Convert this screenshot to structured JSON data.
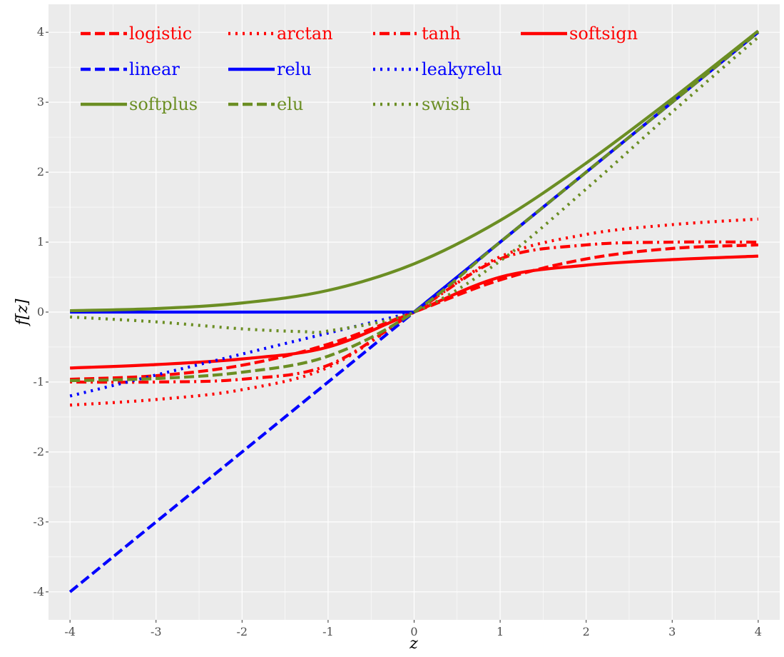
{
  "chart_data": {
    "type": "line",
    "xlabel": "z",
    "ylabel": "f[z]",
    "xlim": [
      -4.25,
      4.25
    ],
    "ylim": [
      -4.4,
      4.4
    ],
    "x_ticks": [
      "-4",
      "-3",
      "-2",
      "-1",
      "0",
      "1",
      "2",
      "3",
      "4"
    ],
    "y_ticks": [
      "-4",
      "-3",
      "-2",
      "-1",
      "0",
      "1",
      "2",
      "3",
      "4"
    ],
    "grid": true,
    "legend_position": "top-left",
    "colors": {
      "red": "#ff0000",
      "blue": "#0000ff",
      "green": "#6b8e23",
      "panel": "#ebebeb",
      "grid": "#ffffff"
    },
    "series": [
      {
        "name": "logistic",
        "color": "#ff0000",
        "dash": "dashed",
        "x": [
          -4,
          -3,
          -2,
          -1,
          0,
          1,
          2,
          3,
          4
        ],
        "y": [
          -0.96,
          -0.91,
          -0.76,
          -0.46,
          0,
          0.46,
          0.76,
          0.91,
          0.96
        ]
      },
      {
        "name": "arctan",
        "color": "#ff0000",
        "dash": "dotted",
        "x": [
          -4,
          -3,
          -2,
          -1,
          0,
          1,
          2,
          3,
          4
        ],
        "y": [
          -1.33,
          -1.25,
          -1.11,
          -0.79,
          0,
          0.79,
          1.11,
          1.25,
          1.33
        ]
      },
      {
        "name": "tanh",
        "color": "#ff0000",
        "dash": "dotdash",
        "x": [
          -4,
          -3,
          -2,
          -1,
          0,
          1,
          2,
          3,
          4
        ],
        "y": [
          -1.0,
          -1.0,
          -0.96,
          -0.76,
          0,
          0.76,
          0.96,
          1.0,
          1.0
        ]
      },
      {
        "name": "softsign",
        "color": "#ff0000",
        "dash": "solid",
        "x": [
          -4,
          -3,
          -2,
          -1,
          0,
          1,
          2,
          3,
          4
        ],
        "y": [
          -0.8,
          -0.75,
          -0.67,
          -0.5,
          0,
          0.5,
          0.67,
          0.75,
          0.8
        ]
      },
      {
        "name": "linear",
        "color": "#0000ff",
        "dash": "dashed",
        "x": [
          -4,
          4
        ],
        "y": [
          -4,
          4
        ]
      },
      {
        "name": "relu",
        "color": "#0000ff",
        "dash": "solid",
        "x": [
          -4,
          0,
          4
        ],
        "y": [
          0,
          0,
          4
        ]
      },
      {
        "name": "leakyrelu",
        "color": "#0000ff",
        "dash": "dotted",
        "x": [
          -4,
          0,
          4
        ],
        "y": [
          -1.2,
          0,
          4
        ]
      },
      {
        "name": "softplus",
        "color": "#6b8e23",
        "dash": "solid",
        "x": [
          -4,
          -3,
          -2,
          -1,
          0,
          1,
          2,
          3,
          4
        ],
        "y": [
          0.02,
          0.05,
          0.13,
          0.31,
          0.69,
          1.31,
          2.13,
          3.05,
          4.02
        ]
      },
      {
        "name": "elu",
        "color": "#6b8e23",
        "dash": "dashed",
        "x": [
          -4,
          -3,
          -2,
          -1,
          0,
          1,
          2,
          3,
          4
        ],
        "y": [
          -0.98,
          -0.95,
          -0.86,
          -0.63,
          0,
          1,
          2,
          3,
          4
        ]
      },
      {
        "name": "swish",
        "color": "#6b8e23",
        "dash": "dotted",
        "x": [
          -4,
          -3,
          -2,
          -1.28,
          -1,
          0,
          1,
          2,
          3,
          4
        ],
        "y": [
          -0.07,
          -0.14,
          -0.24,
          -0.28,
          -0.27,
          0,
          0.73,
          1.76,
          2.86,
          3.93
        ]
      }
    ]
  }
}
